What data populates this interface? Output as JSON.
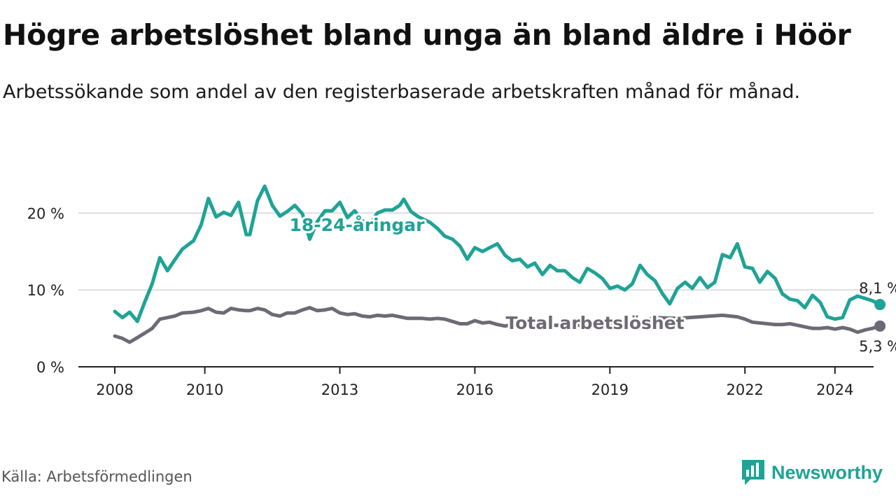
{
  "title": "Högre arbetslöshet bland unga än bland äldre i Höör",
  "subtitle": "Arbetssökande som andel av den registerbaserade arbetskraften månad för månad.",
  "source": "Källa: Arbetsförmedlingen",
  "brand": {
    "name": "Newsworthy",
    "icon": "bar-chart-logo-icon",
    "color": "#1fa396"
  },
  "colors": {
    "youth": "#1fa396",
    "total": "#6e6a75",
    "grid": "#dddddd",
    "axis": "#222222"
  },
  "chart_data": {
    "type": "line",
    "x_ticks": [
      2008,
      2010,
      2013,
      2016,
      2019,
      2022,
      2024
    ],
    "y_ticks": [
      0,
      10,
      20
    ],
    "y_tick_labels": [
      "0 %",
      "10 %",
      "20 %"
    ],
    "xlim": [
      2007.75,
      2025.0
    ],
    "ylim": [
      0,
      25
    ],
    "series": [
      {
        "name": "18-24-åringar",
        "label": "18-24-åringar",
        "end_label": "8,1 %",
        "points": [
          [
            2008.0,
            7.2
          ],
          [
            2008.17,
            6.4
          ],
          [
            2008.33,
            7.1
          ],
          [
            2008.5,
            5.9
          ],
          [
            2008.67,
            8.5
          ],
          [
            2008.83,
            10.8
          ],
          [
            2009.0,
            14.2
          ],
          [
            2009.17,
            12.5
          ],
          [
            2009.33,
            13.9
          ],
          [
            2009.5,
            15.3
          ],
          [
            2009.75,
            16.4
          ],
          [
            2009.92,
            18.5
          ],
          [
            2010.08,
            21.9
          ],
          [
            2010.25,
            19.5
          ],
          [
            2010.42,
            20.1
          ],
          [
            2010.58,
            19.7
          ],
          [
            2010.75,
            21.4
          ],
          [
            2010.92,
            17.2
          ],
          [
            2011.0,
            17.2
          ],
          [
            2011.17,
            21.6
          ],
          [
            2011.33,
            23.5
          ],
          [
            2011.5,
            21.0
          ],
          [
            2011.67,
            19.6
          ],
          [
            2011.83,
            20.2
          ],
          [
            2012.0,
            21.0
          ],
          [
            2012.17,
            19.9
          ],
          [
            2012.33,
            16.6
          ],
          [
            2012.5,
            18.9
          ],
          [
            2012.67,
            20.3
          ],
          [
            2012.83,
            20.3
          ],
          [
            2013.0,
            21.4
          ],
          [
            2013.17,
            19.4
          ],
          [
            2013.33,
            20.3
          ],
          [
            2013.5,
            19.0
          ],
          [
            2013.67,
            18.5
          ],
          [
            2013.83,
            20.0
          ],
          [
            2014.0,
            20.4
          ],
          [
            2014.17,
            20.4
          ],
          [
            2014.33,
            21.0
          ],
          [
            2014.42,
            21.8
          ],
          [
            2014.58,
            20.2
          ],
          [
            2014.75,
            19.5
          ],
          [
            2015.0,
            18.8
          ],
          [
            2015.17,
            18.0
          ],
          [
            2015.33,
            17.0
          ],
          [
            2015.5,
            16.6
          ],
          [
            2015.67,
            15.7
          ],
          [
            2015.83,
            14.0
          ],
          [
            2016.0,
            15.5
          ],
          [
            2016.17,
            15.0
          ],
          [
            2016.33,
            15.5
          ],
          [
            2016.5,
            16.0
          ],
          [
            2016.67,
            14.5
          ],
          [
            2016.83,
            13.8
          ],
          [
            2017.0,
            14.0
          ],
          [
            2017.17,
            13.0
          ],
          [
            2017.33,
            13.5
          ],
          [
            2017.5,
            12.0
          ],
          [
            2017.67,
            13.2
          ],
          [
            2017.83,
            12.5
          ],
          [
            2018.0,
            12.5
          ],
          [
            2018.17,
            11.6
          ],
          [
            2018.33,
            11.0
          ],
          [
            2018.5,
            12.8
          ],
          [
            2018.67,
            12.2
          ],
          [
            2018.83,
            11.5
          ],
          [
            2019.0,
            10.2
          ],
          [
            2019.17,
            10.5
          ],
          [
            2019.33,
            10.0
          ],
          [
            2019.5,
            10.8
          ],
          [
            2019.67,
            13.2
          ],
          [
            2019.83,
            12.0
          ],
          [
            2020.0,
            11.2
          ],
          [
            2020.17,
            9.5
          ],
          [
            2020.33,
            8.2
          ],
          [
            2020.5,
            10.2
          ],
          [
            2020.67,
            11.0
          ],
          [
            2020.83,
            10.2
          ],
          [
            2021.0,
            11.6
          ],
          [
            2021.17,
            10.3
          ],
          [
            2021.33,
            11.0
          ],
          [
            2021.5,
            14.6
          ],
          [
            2021.67,
            14.2
          ],
          [
            2021.83,
            16.0
          ],
          [
            2022.0,
            13.0
          ],
          [
            2022.17,
            12.8
          ],
          [
            2022.33,
            11.0
          ],
          [
            2022.5,
            12.4
          ],
          [
            2022.67,
            11.5
          ],
          [
            2022.83,
            9.5
          ],
          [
            2023.0,
            8.8
          ],
          [
            2023.17,
            8.6
          ],
          [
            2023.33,
            7.7
          ],
          [
            2023.5,
            9.3
          ],
          [
            2023.67,
            8.4
          ],
          [
            2023.83,
            6.5
          ],
          [
            2024.0,
            6.2
          ],
          [
            2024.17,
            6.4
          ],
          [
            2024.33,
            8.7
          ],
          [
            2024.5,
            9.2
          ],
          [
            2024.67,
            8.9
          ],
          [
            2024.83,
            8.6
          ],
          [
            2025.0,
            8.1
          ]
        ]
      },
      {
        "name": "Total arbetslöshet",
        "label": "Total arbetslöshet",
        "end_label": "5,3 %",
        "points": [
          [
            2008.0,
            4.0
          ],
          [
            2008.17,
            3.7
          ],
          [
            2008.33,
            3.2
          ],
          [
            2008.5,
            3.8
          ],
          [
            2008.67,
            4.4
          ],
          [
            2008.83,
            5.0
          ],
          [
            2009.0,
            6.2
          ],
          [
            2009.17,
            6.4
          ],
          [
            2009.33,
            6.6
          ],
          [
            2009.5,
            7.0
          ],
          [
            2009.75,
            7.1
          ],
          [
            2009.92,
            7.3
          ],
          [
            2010.08,
            7.6
          ],
          [
            2010.25,
            7.1
          ],
          [
            2010.42,
            7.0
          ],
          [
            2010.58,
            7.6
          ],
          [
            2010.75,
            7.4
          ],
          [
            2010.92,
            7.3
          ],
          [
            2011.0,
            7.3
          ],
          [
            2011.17,
            7.6
          ],
          [
            2011.33,
            7.4
          ],
          [
            2011.5,
            6.8
          ],
          [
            2011.67,
            6.6
          ],
          [
            2011.83,
            7.0
          ],
          [
            2012.0,
            7.0
          ],
          [
            2012.17,
            7.4
          ],
          [
            2012.33,
            7.7
          ],
          [
            2012.5,
            7.3
          ],
          [
            2012.67,
            7.4
          ],
          [
            2012.83,
            7.6
          ],
          [
            2013.0,
            7.0
          ],
          [
            2013.17,
            6.8
          ],
          [
            2013.33,
            6.9
          ],
          [
            2013.5,
            6.6
          ],
          [
            2013.67,
            6.5
          ],
          [
            2013.83,
            6.7
          ],
          [
            2014.0,
            6.6
          ],
          [
            2014.17,
            6.7
          ],
          [
            2014.33,
            6.5
          ],
          [
            2014.5,
            6.3
          ],
          [
            2014.67,
            6.3
          ],
          [
            2014.83,
            6.3
          ],
          [
            2015.0,
            6.2
          ],
          [
            2015.17,
            6.3
          ],
          [
            2015.33,
            6.2
          ],
          [
            2015.5,
            5.9
          ],
          [
            2015.67,
            5.6
          ],
          [
            2015.83,
            5.6
          ],
          [
            2016.0,
            6.0
          ],
          [
            2016.17,
            5.7
          ],
          [
            2016.33,
            5.8
          ],
          [
            2016.5,
            5.5
          ],
          [
            2016.67,
            5.3
          ],
          [
            2016.83,
            5.5
          ],
          [
            2017.0,
            5.4
          ],
          [
            2017.5,
            5.4
          ],
          [
            2018.0,
            5.4
          ],
          [
            2018.5,
            5.4
          ],
          [
            2019.0,
            5.4
          ],
          [
            2019.5,
            5.5
          ],
          [
            2020.0,
            6.4
          ],
          [
            2020.5,
            6.3
          ],
          [
            2021.0,
            6.5
          ],
          [
            2021.5,
            6.7
          ],
          [
            2021.67,
            6.6
          ],
          [
            2021.83,
            6.5
          ],
          [
            2022.0,
            6.2
          ],
          [
            2022.17,
            5.8
          ],
          [
            2022.33,
            5.7
          ],
          [
            2022.5,
            5.6
          ],
          [
            2022.67,
            5.5
          ],
          [
            2022.83,
            5.5
          ],
          [
            2023.0,
            5.6
          ],
          [
            2023.17,
            5.4
          ],
          [
            2023.33,
            5.2
          ],
          [
            2023.5,
            5.0
          ],
          [
            2023.67,
            5.0
          ],
          [
            2023.83,
            5.1
          ],
          [
            2024.0,
            4.9
          ],
          [
            2024.17,
            5.1
          ],
          [
            2024.33,
            4.9
          ],
          [
            2024.5,
            4.5
          ],
          [
            2024.67,
            4.8
          ],
          [
            2024.83,
            5.0
          ],
          [
            2025.0,
            5.3
          ]
        ]
      }
    ]
  }
}
